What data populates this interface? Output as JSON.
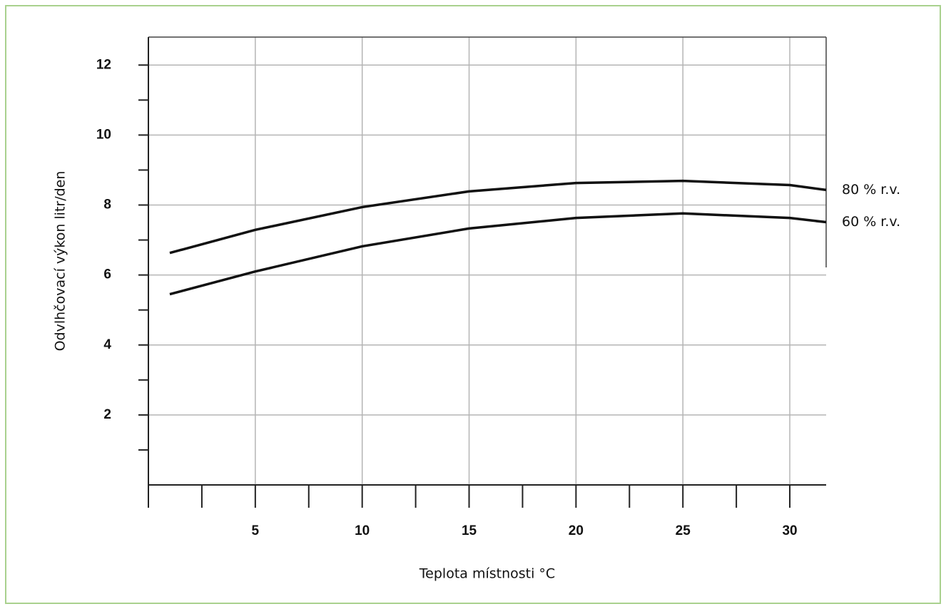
{
  "chart_data": {
    "type": "line",
    "xlabel": "Teplota místnosti °C",
    "ylabel": "Odvlhčovací výkon litr/den",
    "x": [
      1,
      5,
      10,
      15,
      20,
      25,
      30,
      31.7
    ],
    "series": [
      {
        "name": "80 % r.v.",
        "color": "#111111",
        "values": [
          6.63,
          7.29,
          7.94,
          8.39,
          8.63,
          8.69,
          8.57,
          8.43
        ]
      },
      {
        "name": "60 % r.v.",
        "color": "#111111",
        "values": [
          5.45,
          6.1,
          6.82,
          7.33,
          7.63,
          7.76,
          7.63,
          7.51
        ]
      }
    ],
    "xlim": [
      0,
      31.7
    ],
    "ylim": [
      0,
      12.8
    ],
    "xticks": [
      5,
      10,
      15,
      20,
      25,
      30
    ],
    "yticks": [
      2,
      4,
      6,
      8,
      10,
      12
    ],
    "xminorticks": [
      0,
      2.5,
      7.5,
      12.5,
      17.5,
      22.5,
      27.5
    ],
    "yminorticks": [
      1,
      3,
      5,
      7,
      9,
      11
    ],
    "grid": true
  }
}
